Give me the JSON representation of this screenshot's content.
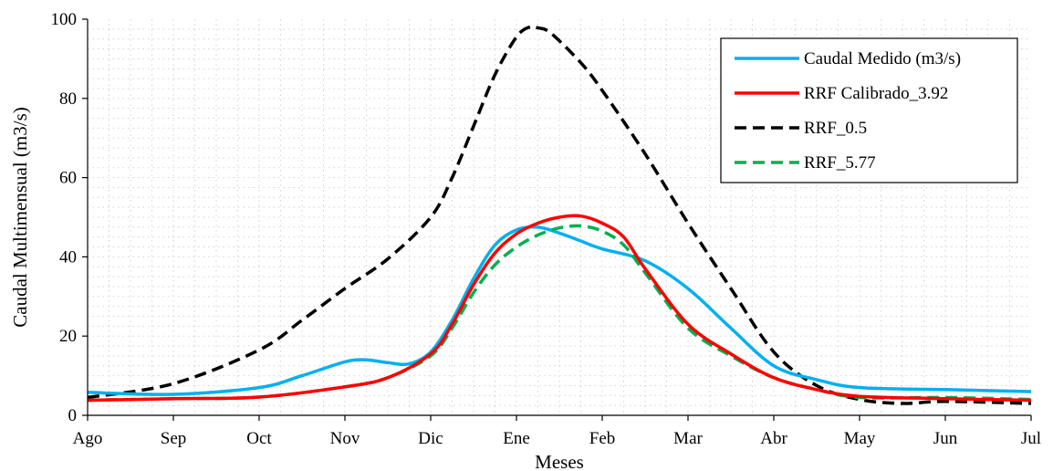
{
  "chart_data": {
    "type": "line",
    "title": "",
    "xlabel": "Meses",
    "ylabel": "Caudal Multimensual (m3/s)",
    "categories": [
      "Ago",
      "Sep",
      "Oct",
      "Nov",
      "Dic",
      "Ene",
      "Feb",
      "Mar",
      "Abr",
      "May",
      "Jun",
      "Jul"
    ],
    "ylim": [
      0,
      100
    ],
    "yticks": [
      0,
      20,
      40,
      60,
      80,
      100
    ],
    "grid": "dotted",
    "legend_position": "top-right",
    "series": [
      {
        "name": "Caudal Medido (m3/s)",
        "color": "#00b0f0",
        "style": "solid",
        "x": [
          0,
          1,
          2,
          2.5,
          3,
          3.25,
          3.5,
          3.75,
          4,
          4.25,
          4.5,
          4.75,
          5,
          5.25,
          5.5,
          5.75,
          6,
          6.5,
          7,
          7.5,
          8,
          8.5,
          9,
          10,
          11
        ],
        "values": [
          5.8,
          5.3,
          7.0,
          10.0,
          13.5,
          14.0,
          13.3,
          13.0,
          16.0,
          24.0,
          34.5,
          43.0,
          46.8,
          47.5,
          46.0,
          44.0,
          42.0,
          39.0,
          32.0,
          22.0,
          12.5,
          9.0,
          7.0,
          6.5,
          6.0
        ]
      },
      {
        "name": "RRF Calibrado_3.92",
        "color": "#ff0000",
        "style": "solid",
        "x": [
          0,
          1,
          2,
          3,
          3.5,
          4,
          4.25,
          4.5,
          4.75,
          5,
          5.25,
          5.5,
          5.75,
          6,
          6.25,
          6.5,
          7,
          7.5,
          8,
          8.5,
          9,
          10,
          11
        ],
        "values": [
          3.8,
          4.2,
          4.6,
          7.2,
          9.5,
          15.5,
          23.0,
          33.0,
          41.0,
          45.8,
          48.5,
          50.0,
          50.3,
          48.5,
          45.0,
          37.0,
          23.0,
          15.5,
          9.5,
          6.5,
          4.8,
          4.2,
          3.8
        ]
      },
      {
        "name": "RRF_0.5",
        "color": "#000000",
        "style": "dashed",
        "x": [
          0,
          1,
          2,
          2.5,
          3,
          3.5,
          4,
          4.25,
          4.5,
          4.75,
          5,
          5.15,
          5.25,
          5.4,
          5.75,
          6,
          6.5,
          7,
          7.5,
          8,
          8.5,
          9,
          9.5,
          10,
          11
        ],
        "values": [
          4.5,
          8.0,
          16.5,
          24.0,
          32.0,
          39.5,
          50.0,
          60.0,
          73.0,
          86.0,
          95.5,
          98.0,
          97.8,
          96.5,
          89.0,
          82.0,
          66.0,
          48.5,
          32.0,
          16.0,
          7.5,
          4.0,
          3.0,
          3.5,
          3.0
        ]
      },
      {
        "name": "RRF_5.77",
        "color": "#00b050",
        "style": "dashed",
        "x": [
          0,
          1,
          2,
          3,
          3.5,
          4,
          4.25,
          4.5,
          4.75,
          5,
          5.25,
          5.5,
          5.75,
          6,
          6.25,
          6.5,
          7,
          7.5,
          8,
          8.5,
          9,
          10,
          11
        ],
        "values": [
          3.8,
          4.2,
          4.6,
          7.2,
          9.5,
          15.0,
          22.0,
          31.0,
          38.0,
          42.5,
          45.5,
          47.3,
          47.8,
          46.5,
          43.0,
          36.0,
          22.0,
          15.0,
          9.5,
          6.5,
          4.5,
          4.5,
          4.0
        ]
      }
    ]
  }
}
